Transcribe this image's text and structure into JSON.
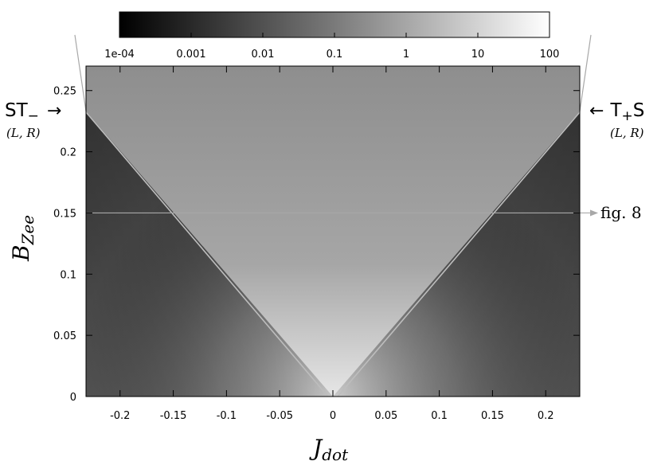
{
  "chart_data": {
    "type": "heatmap",
    "colorbar": {
      "scale": "log",
      "range": [
        0.0001,
        100
      ],
      "colormap": "grayscale (black = low, white = high)",
      "tick_labels": [
        "1e-04",
        "0.001",
        "0.01",
        "0.1",
        "1",
        "10",
        "100"
      ]
    },
    "x": {
      "symbol": "J",
      "subscript": "dot",
      "range": [
        -0.232,
        0.232
      ],
      "ticks": [
        -0.2,
        -0.15,
        -0.1,
        -0.05,
        0,
        0.05,
        0.1,
        0.15,
        0.2
      ],
      "tick_labels": [
        "-0.2",
        "-0.15",
        "-0.1",
        "-0.05",
        "0",
        "0.05",
        "0.1",
        "0.15",
        "0.2"
      ]
    },
    "y": {
      "symbol": "B",
      "subscript": "Zee",
      "range": [
        0,
        0.27
      ],
      "ticks": [
        0,
        0.05,
        0.1,
        0.15,
        0.2,
        0.25
      ],
      "tick_labels": [
        "0",
        "0.05",
        "0.1",
        "0.15",
        "0.2",
        "0.25"
      ]
    },
    "resonance_lines": [
      {
        "from": [
          0,
          0
        ],
        "to": [
          -0.232,
          0.233
        ]
      },
      {
        "from": [
          0,
          0
        ],
        "to": [
          0.232,
          0.233
        ]
      }
    ],
    "cut_line": {
      "y": 0.15
    },
    "annotations": {
      "left": {
        "main": "ST",
        "sub": "−",
        "arrow": "→",
        "pair": "(L, R)",
        "at": [
          -0.232,
          0.233
        ]
      },
      "right": {
        "arrow": "←",
        "main_a": "T",
        "sub": "+",
        "main_b": "S",
        "pair": "(L, R)",
        "at": [
          0.232,
          0.233
        ]
      },
      "cut": {
        "arrow": "→",
        "text": "fig. 8",
        "at_y": 0.15
      }
    }
  }
}
